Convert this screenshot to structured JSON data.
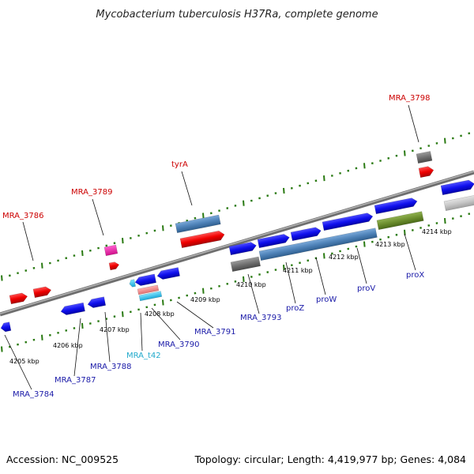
{
  "title": "Mycobacterium tuberculosis H37Ra, complete genome",
  "footer": {
    "accession": "Accession: NC_009525",
    "summary": "Topology: circular; Length: 4,419,977 bp; Genes: 4,084"
  },
  "colors": {
    "backbone": "#8a8a8a",
    "tick": "#2a7a12",
    "label_red": "#cc0000",
    "label_blue": "#1a1aa8",
    "label_cyan": "#22aacc",
    "leader": "#111111"
  },
  "scale_ticks": [
    "4205 kbp",
    "4206 kbp",
    "4207 kbp",
    "4208 kbp",
    "4209 kbp",
    "4210 kbp",
    "4211 kbp",
    "4212 kbp",
    "4213 kbp",
    "4214 kbp"
  ],
  "gene_labels": [
    {
      "text": "MRA_3786",
      "color": "red"
    },
    {
      "text": "MRA_3789",
      "color": "red"
    },
    {
      "text": "tyrA",
      "color": "red"
    },
    {
      "text": "MRA_3798",
      "color": "red"
    },
    {
      "text": "MRA_3784",
      "color": "blue"
    },
    {
      "text": "MRA_3787",
      "color": "blue"
    },
    {
      "text": "MRA_3788",
      "color": "blue"
    },
    {
      "text": "MRA_t42",
      "color": "cyan"
    },
    {
      "text": "MRA_3790",
      "color": "blue"
    },
    {
      "text": "MRA_3791",
      "color": "blue"
    },
    {
      "text": "MRA_3793",
      "color": "blue"
    },
    {
      "text": "proZ",
      "color": "blue"
    },
    {
      "text": "proW",
      "color": "blue"
    },
    {
      "text": "proV",
      "color": "blue"
    },
    {
      "text": "proX",
      "color": "blue"
    }
  ]
}
